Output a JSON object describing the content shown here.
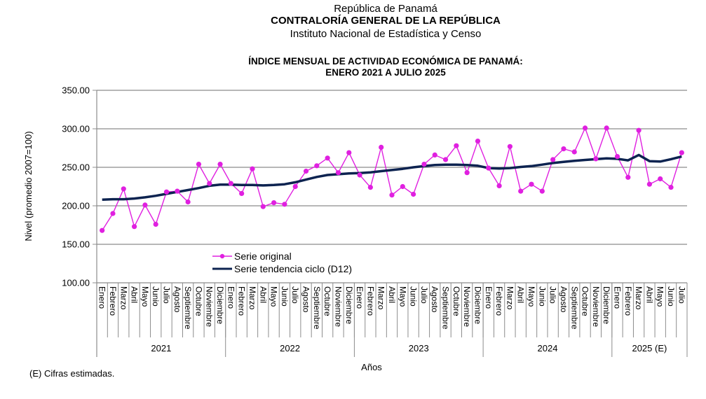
{
  "header": {
    "country": "República de Panamá",
    "institution": "CONTRALORÍA GENERAL DE LA REPÚBLICA",
    "institute": "Instituto Nacional de Estadística y Censo"
  },
  "footnote": "(E) Cifras estimadas.",
  "chart_data": {
    "type": "line",
    "title": "ÍNDICE MENSUAL DE ACTIVIDAD ECONÓMICA DE PANAMÁ:",
    "subtitle": "ENERO 2021 A JULIO 2025",
    "xlabel": "Años",
    "ylabel": "Nivel (promedio 2007=100)",
    "ylim": [
      100,
      350
    ],
    "yticks": [
      "100.00",
      "150.00",
      "200.00",
      "250.00",
      "300.00",
      "350.00"
    ],
    "ytick_values": [
      100,
      150,
      200,
      250,
      300,
      350
    ],
    "grid": true,
    "legend_position": "lower-left inside plot",
    "year_groups": [
      {
        "label": "2021",
        "months": 12
      },
      {
        "label": "2022",
        "months": 12
      },
      {
        "label": "2023",
        "months": 12
      },
      {
        "label": "2024",
        "months": 12
      },
      {
        "label": "2025 (E)",
        "months": 7
      }
    ],
    "months": [
      "Enero",
      "Febrero",
      "Marzo",
      "Abril",
      "Mayo",
      "Junio",
      "Julio",
      "Agosto",
      "Septiembre",
      "Octubre",
      "Noviembre",
      "Diciembre",
      "Enero",
      "Febrero",
      "Marzo",
      "Abril",
      "Mayo",
      "Junio",
      "Julio",
      "Agosto",
      "Septiembre",
      "Octubre",
      "Noviembre",
      "Diciembre",
      "Enero",
      "Febrero",
      "Marzo",
      "Abril",
      "Mayo",
      "Junio",
      "Julio",
      "Agosto",
      "Septiembre",
      "Octubre",
      "Noviembre",
      "Diciembre",
      "Enero",
      "Febrero",
      "Marzo",
      "Abril",
      "Mayo",
      "Junio",
      "Julio",
      "Agosto",
      "Septiembre",
      "Octubre",
      "Noviembre",
      "Diciembre",
      "Enero",
      "Febrero",
      "Marzo",
      "Abril",
      "Mayo",
      "Junio",
      "Julio"
    ],
    "series": [
      {
        "name": "Serie original",
        "color": "#e020e0",
        "marker": "circle",
        "values": [
          168,
          190,
          222,
          173,
          201,
          176,
          218,
          219,
          205,
          254,
          229,
          254,
          229,
          216,
          248,
          199,
          204,
          202,
          225,
          245,
          252,
          262,
          243,
          269,
          240,
          224,
          276,
          214,
          225,
          215,
          254,
          266,
          260,
          278,
          243,
          284,
          249,
          226,
          277,
          219,
          228,
          219,
          260,
          274,
          270,
          301,
          261,
          301,
          264,
          237,
          298,
          228,
          235,
          224,
          269
        ]
      },
      {
        "name": "Serie tendencia ciclo (D12)",
        "color": "#0d2350",
        "marker": "none",
        "values": [
          208,
          208.5,
          208.5,
          209.5,
          211,
          213,
          215.5,
          218,
          220.5,
          223,
          226,
          227.5,
          227.5,
          227,
          227,
          226.5,
          227,
          228,
          230.5,
          234,
          237.5,
          240,
          241,
          242,
          242.5,
          243.5,
          245,
          246.5,
          248,
          250,
          251.5,
          253,
          253.5,
          253.5,
          253,
          252,
          249,
          248.5,
          249,
          250.5,
          251.5,
          253.5,
          255.5,
          257,
          258.5,
          259.5,
          260.5,
          261.5,
          261,
          259,
          266,
          258,
          257.5,
          260.5,
          264
        ]
      }
    ]
  }
}
